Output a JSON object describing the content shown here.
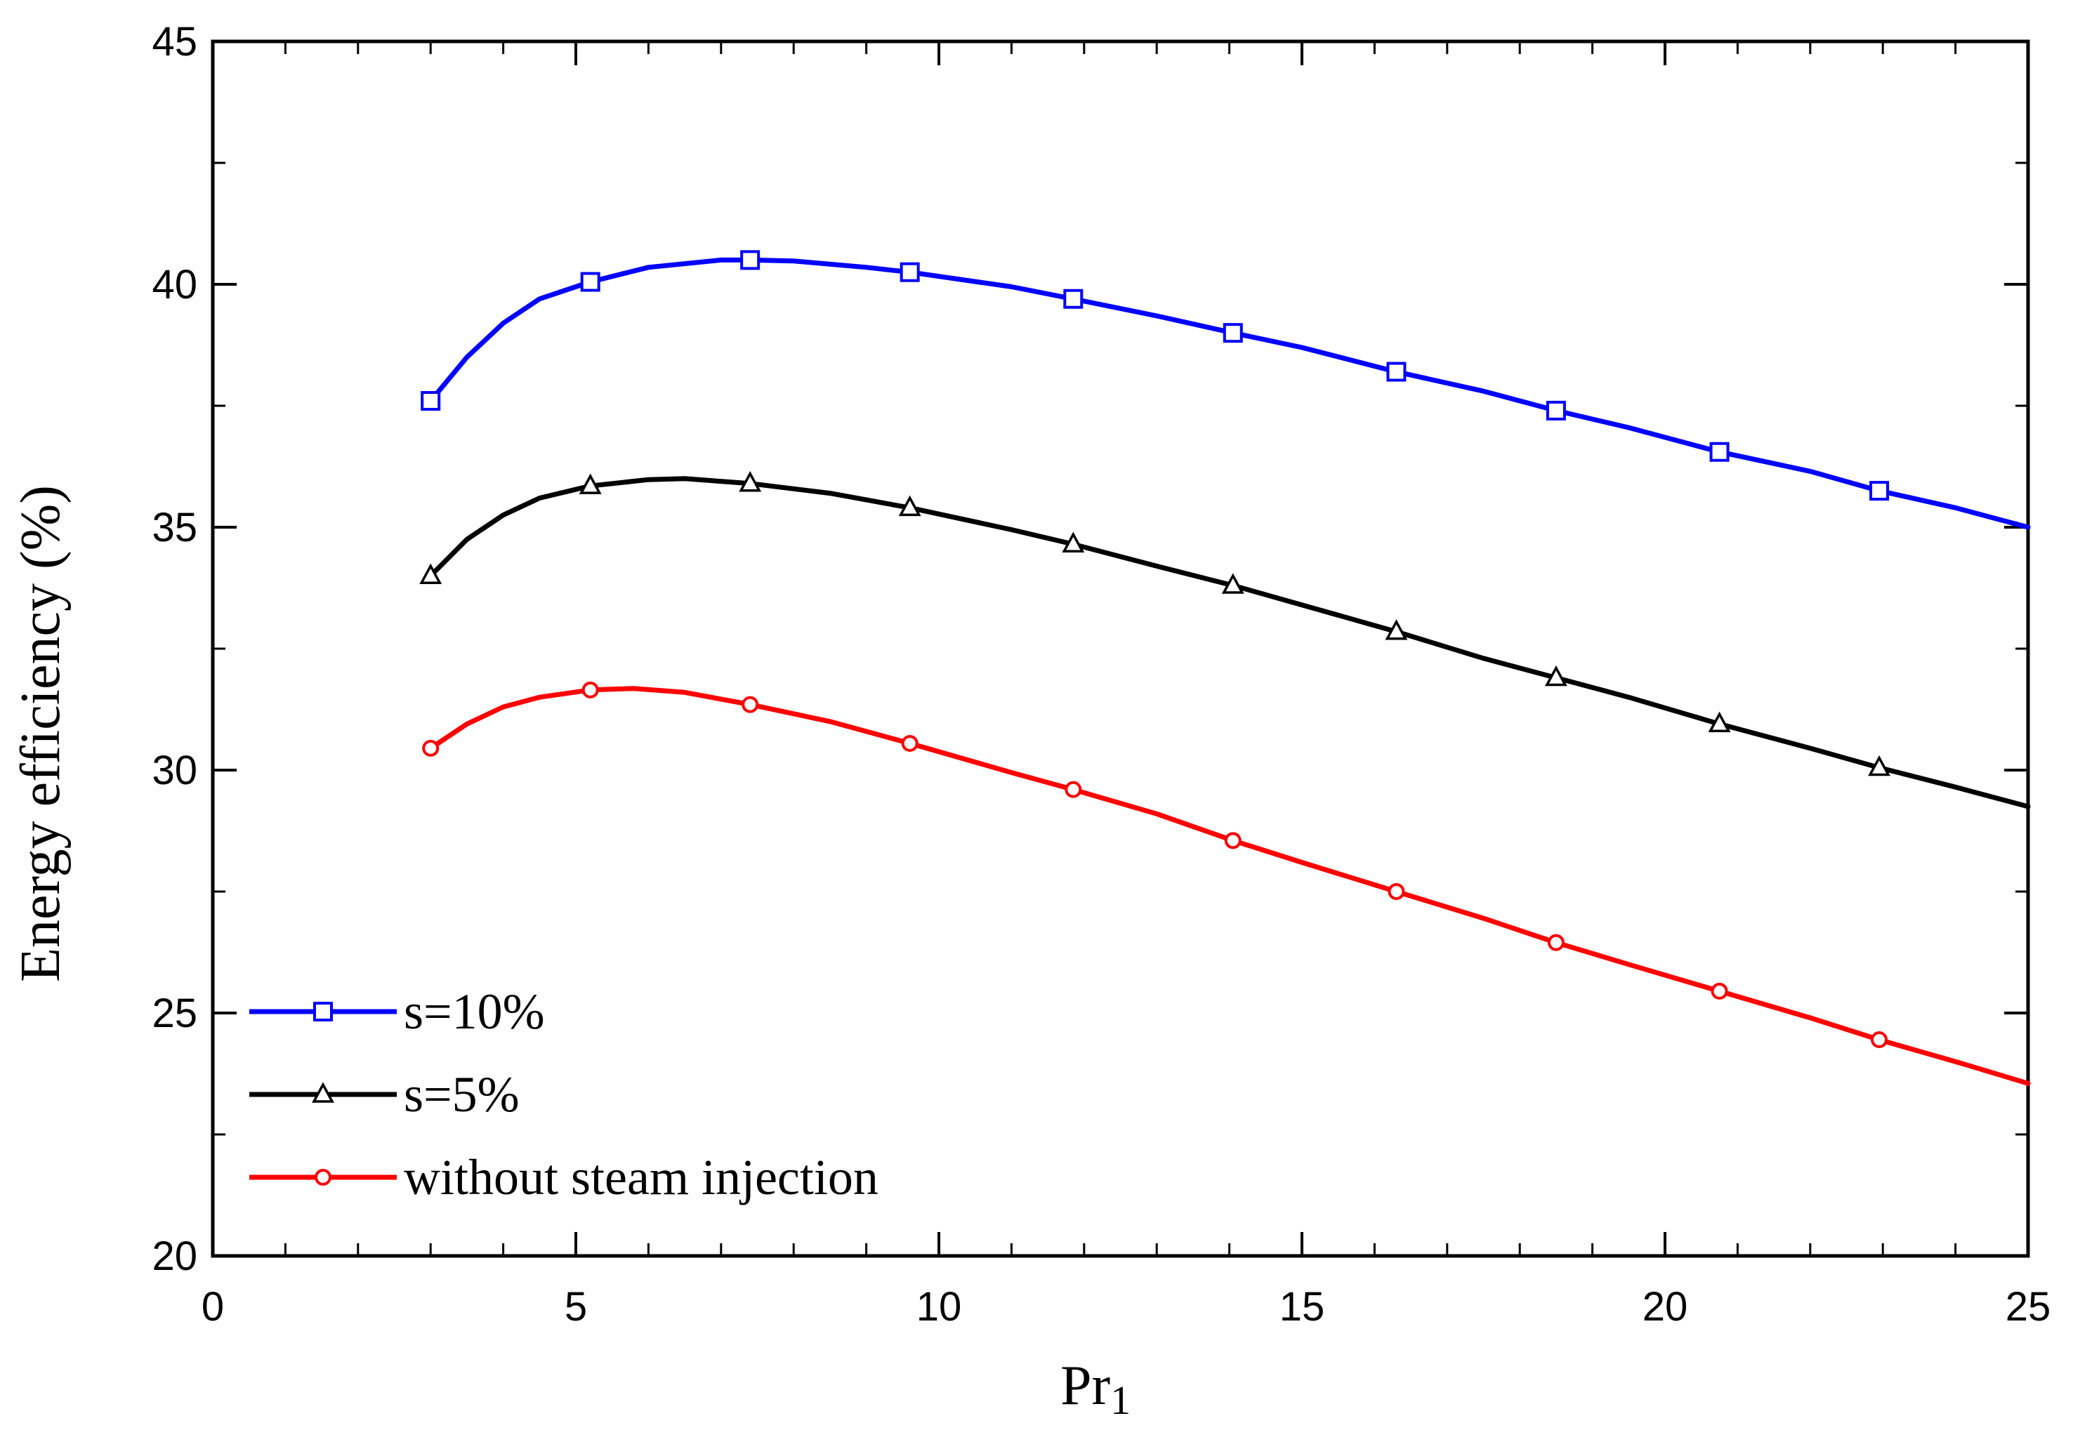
{
  "chart_data": {
    "type": "line",
    "title": "",
    "xlabel": "Pr",
    "xlabel_subscript": "1",
    "ylabel": "Energy efficiency (%)",
    "xlim": [
      0,
      25
    ],
    "ylim": [
      20,
      45
    ],
    "xticks": [
      0,
      5,
      10,
      15,
      20,
      25
    ],
    "yticks": [
      20,
      25,
      30,
      35,
      40,
      45
    ],
    "x_minor_step": 1,
    "y_minor_step": 2.5,
    "grid": false,
    "legend_position": "bottom-left",
    "series": [
      {
        "name": "s=10%",
        "color": "#0000ff",
        "marker": "square",
        "x": [
          3,
          5.2,
          7.4,
          9.6,
          11.85,
          14.05,
          16.3,
          18.5,
          20.75,
          22.95
        ],
        "y": [
          37.6,
          40.05,
          40.5,
          40.25,
          39.7,
          39.0,
          38.2,
          37.4,
          36.55,
          35.75
        ],
        "curve_x": [
          3,
          3.5,
          4,
          4.5,
          5.2,
          6,
          7,
          7.4,
          8,
          9,
          9.6,
          11,
          11.85,
          13,
          14.05,
          15,
          16.3,
          17.5,
          18.5,
          19.5,
          20.75,
          22,
          22.95,
          24,
          25
        ],
        "curve_y": [
          37.6,
          38.5,
          39.2,
          39.7,
          40.05,
          40.35,
          40.5,
          40.5,
          40.48,
          40.35,
          40.25,
          39.95,
          39.7,
          39.35,
          39.0,
          38.7,
          38.2,
          37.8,
          37.4,
          37.05,
          36.55,
          36.15,
          35.75,
          35.4,
          35.0
        ]
      },
      {
        "name": "s=5%",
        "color": "#000000",
        "marker": "triangle",
        "x": [
          3,
          5.2,
          7.4,
          9.6,
          11.85,
          14.05,
          16.3,
          18.5,
          20.75,
          22.95
        ],
        "y": [
          34.0,
          35.85,
          35.9,
          35.4,
          34.65,
          33.8,
          32.85,
          31.9,
          30.95,
          30.05
        ],
        "curve_x": [
          3,
          3.5,
          4,
          4.5,
          5.2,
          6,
          6.5,
          7.4,
          8.5,
          9.6,
          11,
          11.85,
          13,
          14.05,
          15,
          16.3,
          17.5,
          18.5,
          19.5,
          20.75,
          22,
          22.95,
          24,
          25
        ],
        "curve_y": [
          34.0,
          34.75,
          35.25,
          35.6,
          35.85,
          35.98,
          36.0,
          35.9,
          35.7,
          35.4,
          34.95,
          34.65,
          34.2,
          33.8,
          33.4,
          32.85,
          32.3,
          31.9,
          31.5,
          30.95,
          30.45,
          30.05,
          29.65,
          29.25
        ]
      },
      {
        "name": "without steam injection",
        "color": "#ff0000",
        "marker": "circle",
        "x": [
          3,
          5.2,
          7.4,
          9.6,
          11.85,
          14.05,
          16.3,
          18.5,
          20.75,
          22.95
        ],
        "y": [
          30.45,
          31.65,
          31.35,
          30.55,
          29.6,
          28.55,
          27.5,
          26.45,
          25.45,
          24.45
        ],
        "curve_x": [
          3,
          3.5,
          4,
          4.5,
          5.2,
          5.8,
          6.5,
          7.4,
          8.5,
          9.6,
          11,
          11.85,
          13,
          14.05,
          15,
          16.3,
          17.5,
          18.5,
          19.5,
          20.75,
          22,
          22.95,
          24,
          25
        ],
        "curve_y": [
          30.45,
          30.95,
          31.3,
          31.5,
          31.65,
          31.68,
          31.6,
          31.35,
          31.0,
          30.55,
          29.95,
          29.6,
          29.1,
          28.55,
          28.1,
          27.5,
          26.95,
          26.45,
          26.0,
          25.45,
          24.9,
          24.45,
          24.0,
          23.55
        ]
      }
    ]
  }
}
